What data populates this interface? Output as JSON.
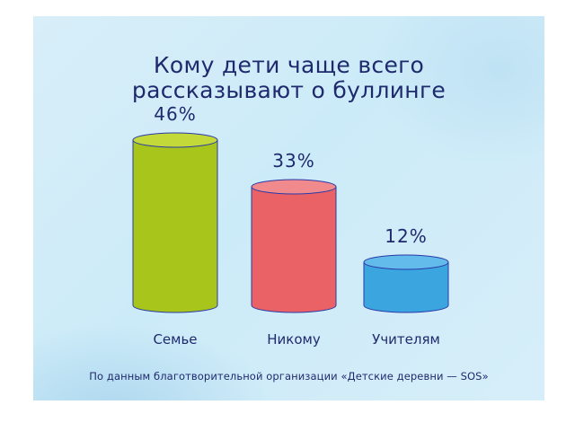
{
  "title_line1": "Кому дети чаще всего",
  "title_line2": "рассказывают о буллинге",
  "source": "По данным благотворительной организации «Детские деревни — SOS»",
  "colors": {
    "text": "#1f2a6e",
    "series": [
      "#a8c51c",
      "#ea6266",
      "#3aa5df"
    ],
    "series_top": [
      "#c3d93a",
      "#f08a8d",
      "#63bbec"
    ],
    "outline": "#2a3aa8"
  },
  "chart_data": {
    "type": "bar",
    "categories": [
      "Семье",
      "Никому",
      "Учителям"
    ],
    "values": [
      46,
      33,
      12
    ],
    "data_labels": [
      "46%",
      "33%",
      "12%"
    ],
    "unit": "%",
    "title": "Кому дети чаще всего рассказывают о буллинге",
    "xlabel": "",
    "ylabel": "",
    "grid": false,
    "legend": "none"
  }
}
